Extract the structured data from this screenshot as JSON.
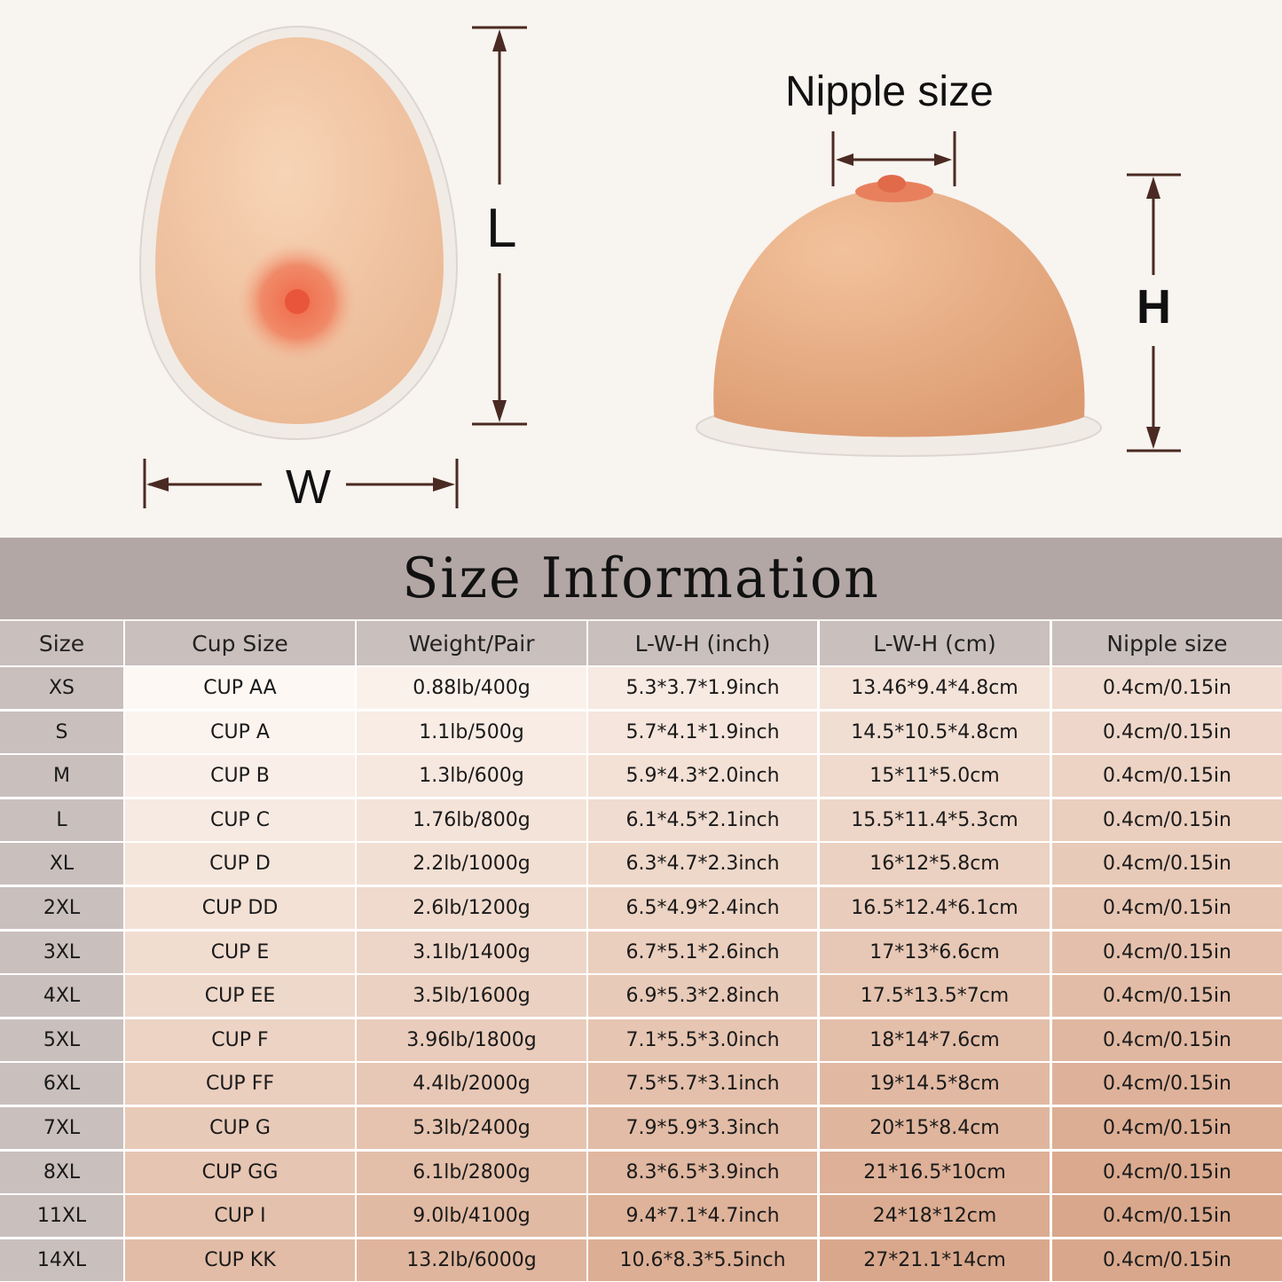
{
  "illustration": {
    "label_length": "L",
    "label_width": "W",
    "label_height": "H",
    "label_nipple": "Nipple size",
    "arrow_color": "#4a2a22",
    "skin_color": "#efc3a0"
  },
  "title": "Size Information",
  "table": {
    "headers": [
      "Size",
      "Cup Size",
      "Weight/Pair",
      "L-W-H (inch)",
      "L-W-H (cm)",
      "Nipple size"
    ],
    "rows": [
      [
        "XS",
        "CUP AA",
        "0.88lb/400g",
        "5.3*3.7*1.9inch",
        "13.46*9.4*4.8cm",
        "0.4cm/0.15in"
      ],
      [
        "S",
        "CUP A",
        "1.1lb/500g",
        "5.7*4.1*1.9inch",
        "14.5*10.5*4.8cm",
        "0.4cm/0.15in"
      ],
      [
        "M",
        "CUP B",
        "1.3lb/600g",
        "5.9*4.3*2.0inch",
        "15*11*5.0cm",
        "0.4cm/0.15in"
      ],
      [
        "L",
        "CUP C",
        "1.76lb/800g",
        "6.1*4.5*2.1inch",
        "15.5*11.4*5.3cm",
        "0.4cm/0.15in"
      ],
      [
        "XL",
        "CUP D",
        "2.2lb/1000g",
        "6.3*4.7*2.3inch",
        "16*12*5.8cm",
        "0.4cm/0.15in"
      ],
      [
        "2XL",
        "CUP DD",
        "2.6lb/1200g",
        "6.5*4.9*2.4inch",
        "16.5*12.4*6.1cm",
        "0.4cm/0.15in"
      ],
      [
        "3XL",
        "CUP E",
        "3.1lb/1400g",
        "6.7*5.1*2.6inch",
        "17*13*6.6cm",
        "0.4cm/0.15in"
      ],
      [
        "4XL",
        "CUP EE",
        "3.5lb/1600g",
        "6.9*5.3*2.8inch",
        "17.5*13.5*7cm",
        "0.4cm/0.15in"
      ],
      [
        "5XL",
        "CUP F",
        "3.96lb/1800g",
        "7.1*5.5*3.0inch",
        "18*14*7.6cm",
        "0.4cm/0.15in"
      ],
      [
        "6XL",
        "CUP FF",
        "4.4lb/2000g",
        "7.5*5.7*3.1inch",
        "19*14.5*8cm",
        "0.4cm/0.15in"
      ],
      [
        "7XL",
        "CUP G",
        "5.3lb/2400g",
        "7.9*5.9*3.3inch",
        "20*15*8.4cm",
        "0.4cm/0.15in"
      ],
      [
        "8XL",
        "CUP GG",
        "6.1lb/2800g",
        "8.3*6.5*3.9inch",
        "21*16.5*10cm",
        "0.4cm/0.15in"
      ],
      [
        "11XL",
        "CUP I",
        "9.0lb/4100g",
        "9.4*7.1*4.7inch",
        "24*18*12cm",
        "0.4cm/0.15in"
      ],
      [
        "14XL",
        "CUP KK",
        "13.2lb/6000g",
        "10.6*8.3*5.5inch",
        "27*21.1*14cm",
        "0.4cm/0.15in"
      ]
    ]
  },
  "colors": {
    "title_band": "#b2a7a5",
    "header_cell": "#c9bfbd",
    "size_column": "#c9bfbd",
    "cell_light": "#fdf8f4",
    "cell_dark": "#d9a88c"
  }
}
